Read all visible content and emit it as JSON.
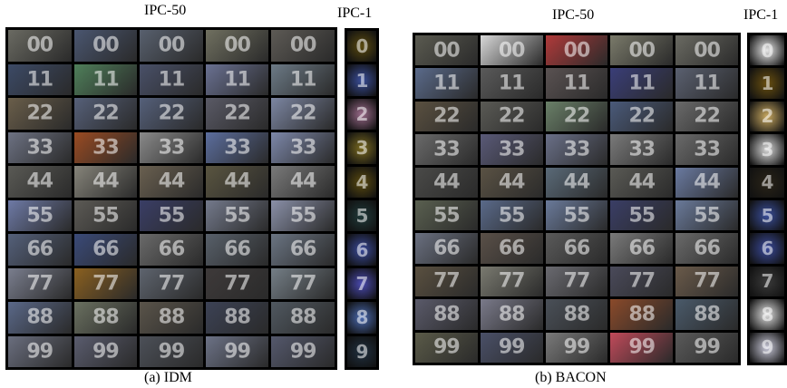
{
  "left": {
    "ipc50_label": "IPC-50",
    "ipc1_label": "IPC-1",
    "caption": "(a) IDM",
    "rows": [
      {
        "digit": "0",
        "colors": [
          "#6a6a62",
          "#4a5670",
          "#58606e",
          "#707060",
          "#5d5a55"
        ]
      },
      {
        "digit": "1",
        "colors": [
          "#3c4a66",
          "#4f7f5a",
          "#495068",
          "#6a7192",
          "#6c7a86"
        ]
      },
      {
        "digit": "2",
        "colors": [
          "#6a5e4a",
          "#566079",
          "#55607a",
          "#5a5a66",
          "#7c86a2"
        ]
      },
      {
        "digit": "3",
        "colors": [
          "#6d7283",
          "#9a4b22",
          "#8a8a8a",
          "#5c6e9e",
          "#7d88aa"
        ]
      },
      {
        "digit": "4",
        "colors": [
          "#5a5a55",
          "#86847a",
          "#6a6050",
          "#5a5540",
          "#7a7a7a"
        ]
      },
      {
        "digit": "5",
        "colors": [
          "#6e7aa6",
          "#5c5a55",
          "#3a3e66",
          "#747a8c",
          "#8a90a8"
        ]
      },
      {
        "digit": "6",
        "colors": [
          "#54607a",
          "#3a4a78",
          "#6a6a6a",
          "#58606a",
          "#6a7482"
        ]
      },
      {
        "digit": "7",
        "colors": [
          "#7a7e8e",
          "#8a6020",
          "#5e646e",
          "#3e3a3a",
          "#747e86"
        ]
      },
      {
        "digit": "8",
        "colors": [
          "#5a6888",
          "#6a7060",
          "#5a544a",
          "#3c4255",
          "#505860"
        ]
      },
      {
        "digit": "9",
        "colors": [
          "#6a6e7e",
          "#5a5c6e",
          "#4c5058",
          "#6c7286",
          "#54586c"
        ]
      }
    ],
    "ipc1_colors": [
      "#5a4a10",
      "#3a4e9a",
      "#9a6a8a",
      "#7a6a20",
      "#5a4a10",
      "#203a3a",
      "#3a4a9a",
      "#4a4ab0",
      "#4a6ab0",
      "#203040"
    ]
  },
  "right": {
    "ipc50_label": "IPC-50",
    "ipc1_label": "IPC-1",
    "caption": "(b) BACON",
    "rows": [
      {
        "digit": "0",
        "colors": [
          "#5a5a50",
          "#d8d8d8",
          "#b03a3a",
          "#7a7a6a",
          "#6a6a62"
        ]
      },
      {
        "digit": "1",
        "colors": [
          "#5a6a8a",
          "#5a5a5a",
          "#5a5252",
          "#3a3e78",
          "#5a6070"
        ]
      },
      {
        "digit": "2",
        "colors": [
          "#5a5040",
          "#5a5a55",
          "#6a8068",
          "#4a5a7a",
          "#6a6a6a"
        ]
      },
      {
        "digit": "3",
        "colors": [
          "#6a6a6a",
          "#5a5a78",
          "#6a7088",
          "#7a7a7a",
          "#6a6a6a"
        ]
      },
      {
        "digit": "4",
        "colors": [
          "#4a4a48",
          "#5a5244",
          "#5a6a78",
          "#5a5a55",
          "#6a7aa0"
        ]
      },
      {
        "digit": "5",
        "colors": [
          "#5a6050",
          "#5a6a8a",
          "#6a7a9a",
          "#3a3e66",
          "#6a7a9a"
        ]
      },
      {
        "digit": "6",
        "colors": [
          "#6a7080",
          "#5a5048",
          "#5a5a5a",
          "#7a7a7a",
          "#6a6a6a"
        ]
      },
      {
        "digit": "7",
        "colors": [
          "#5a5040",
          "#7a7a70",
          "#6a6a70",
          "#4a4a5a",
          "#6a5a4a"
        ]
      },
      {
        "digit": "8",
        "colors": [
          "#5a5a6a",
          "#7a7a8a",
          "#4a5058",
          "#8a4a2a",
          "#4a5a6a"
        ]
      },
      {
        "digit": "9",
        "colors": [
          "#5a5a48",
          "#4a5068",
          "#7a7a7a",
          "#c04a5a",
          "#5a5a5a"
        ]
      }
    ],
    "ipc1_colors": [
      "#e8e8e8",
      "#6a5010",
      "#c8a860",
      "#d8d8d8",
      "#2a2418",
      "#3a4e9a",
      "#3a4a9a",
      "#3a3a3a",
      "#e0e0e0",
      "#c8c8d8"
    ]
  }
}
